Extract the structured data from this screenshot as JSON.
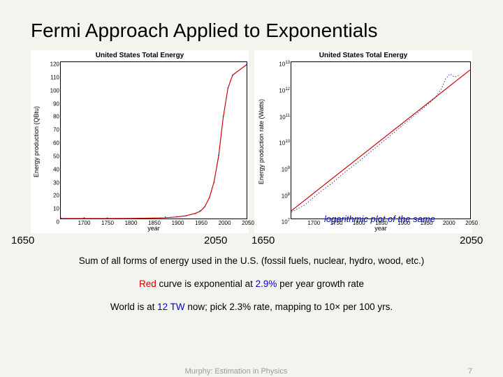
{
  "title": "Fermi Approach Applied to Exponentials",
  "left_chart": {
    "type": "line",
    "title": "United States Total Energy",
    "ylabel": "Energy production (QBtu)",
    "xlabel": "year",
    "xlim": [
      1650,
      2050
    ],
    "ylim": [
      0,
      120
    ],
    "ytick_step": 10,
    "xticks": [
      1700,
      1750,
      1800,
      1850,
      1900,
      1950,
      2000,
      2050
    ],
    "curve_color": "#cc0000",
    "data_color": "#3333aa",
    "background_color": "#ffffff",
    "curve_points": [
      [
        1650,
        0.001
      ],
      [
        1700,
        0.004
      ],
      [
        1750,
        0.017
      ],
      [
        1800,
        0.07
      ],
      [
        1850,
        0.3
      ],
      [
        1875,
        0.6
      ],
      [
        1900,
        1.2
      ],
      [
        1920,
        2.2
      ],
      [
        1940,
        4.0
      ],
      [
        1950,
        5.5
      ],
      [
        1960,
        9.0
      ],
      [
        1970,
        16.0
      ],
      [
        1980,
        28.0
      ],
      [
        1990,
        48.0
      ],
      [
        2000,
        78.0
      ],
      [
        2010,
        100.0
      ],
      [
        2020,
        110.0
      ],
      [
        2050,
        118.0
      ]
    ]
  },
  "right_chart": {
    "type": "line-log",
    "title": "United States Total Energy",
    "ylabel": "Energy production rate (Watts)",
    "xlabel": "year",
    "xlim": [
      1650,
      2050
    ],
    "ylim_log": [
      7,
      13
    ],
    "ytick_exp": [
      7,
      8,
      9,
      10,
      11,
      12,
      13
    ],
    "xticks": [
      1700,
      1750,
      1800,
      1850,
      1900,
      1950,
      2000,
      2050
    ],
    "curve_color": "#cc0000",
    "data_color": "#3333aa",
    "background_color": "#ffffff",
    "line_points": [
      [
        1650,
        7.3
      ],
      [
        2050,
        12.7
      ]
    ],
    "data_wiggle": [
      [
        1650,
        7.25
      ],
      [
        1680,
        7.52
      ],
      [
        1710,
        7.96
      ],
      [
        1740,
        8.35
      ],
      [
        1770,
        8.78
      ],
      [
        1800,
        9.18
      ],
      [
        1830,
        9.6
      ],
      [
        1860,
        10.02
      ],
      [
        1890,
        10.45
      ],
      [
        1920,
        10.88
      ],
      [
        1950,
        11.3
      ],
      [
        1970,
        11.6
      ],
      [
        1985,
        11.95
      ],
      [
        1995,
        12.35
      ],
      [
        2005,
        12.55
      ],
      [
        2015,
        12.42
      ],
      [
        2025,
        12.5
      ]
    ]
  },
  "log_caption": "logarithmic plot of the same",
  "years": {
    "l1": "1650",
    "l2": "2050",
    "r1": "1650",
    "r2": "2050"
  },
  "body": {
    "line1a": "Sum of all forms of energy used in the U.S. (fossil fuels, nuclear, hydro, wood, etc.)",
    "line2_red": "Red",
    "line2_rest": " curve is exponential at ",
    "line2_pct": "2.9%",
    "line2_end": " per year growth rate",
    "line3a": "World is at ",
    "line3_tw": "12 TW",
    "line3b": " now; pick 2.3% rate, mapping to 10× per 100 yrs."
  },
  "footer": {
    "center": "Murphy: Estimation in Physics",
    "page": "7"
  }
}
